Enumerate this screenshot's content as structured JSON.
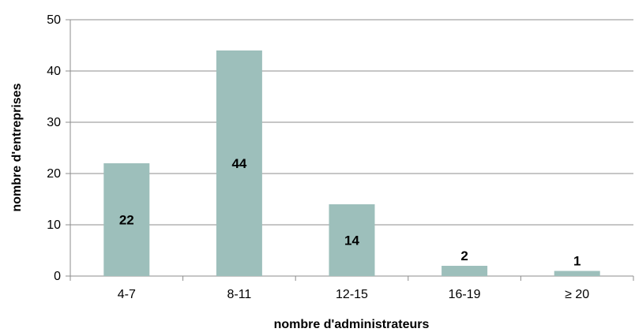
{
  "chart_data": {
    "type": "bar",
    "categories": [
      "4-7",
      "8-11",
      "12-15",
      "16-19",
      "≥ 20"
    ],
    "values": [
      22,
      44,
      14,
      2,
      1
    ],
    "data_labels": [
      "22",
      "44",
      "14",
      "2",
      "1"
    ],
    "title": "",
    "xlabel": "nombre d'administrateurs",
    "ylabel": "nombre d'entreprises",
    "ylim": [
      0,
      50
    ],
    "yticks": [
      0,
      10,
      20,
      30,
      40,
      50
    ],
    "ytick_labels": [
      "0",
      "10",
      "20",
      "30",
      "40",
      "50"
    ],
    "grid": "horizontal",
    "legend": "none",
    "bar_color": "#9dbfbb",
    "grid_color": "#8c8c8c",
    "axis_color": "#8c8c8c"
  }
}
